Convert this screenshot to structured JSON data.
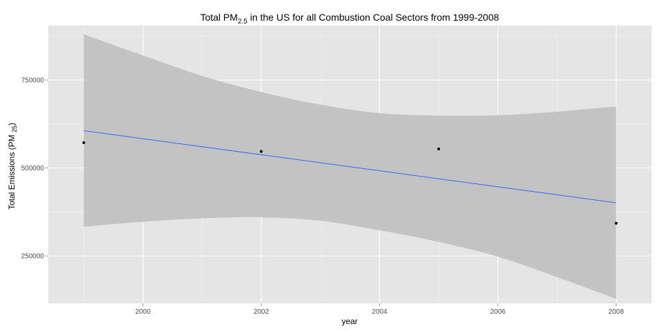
{
  "chart_data": {
    "type": "scatter",
    "title": {
      "prefix": "Total PM",
      "subscript": "2.5",
      "suffix": " in the US for all Combustion Coal Sectors from 1999-2008"
    },
    "xlabel": "year",
    "ylabel": {
      "prefix": "Total Emissions (PM ",
      "subscript": "25",
      "suffix": ")"
    },
    "xlim": [
      1998.4,
      2008.6
    ],
    "ylim": [
      115000,
      905000
    ],
    "x_ticks": [
      2000,
      2002,
      2004,
      2006,
      2008
    ],
    "x_tick_labels": [
      "2000",
      "2002",
      "2004",
      "2006",
      "2008"
    ],
    "y_ticks": [
      250000,
      500000,
      750000
    ],
    "y_tick_labels": [
      "250000",
      "500000",
      "750000"
    ],
    "grid": true,
    "points": [
      {
        "x": 1999,
        "y": 572000
      },
      {
        "x": 2002,
        "y": 547000
      },
      {
        "x": 2005,
        "y": 554000
      },
      {
        "x": 2008,
        "y": 343000
      }
    ],
    "fit_line": {
      "method": "linear",
      "start": {
        "x": 1999,
        "y": 606000
      },
      "end": {
        "x": 2008,
        "y": 401000
      }
    },
    "confidence_band": {
      "x": [
        1999,
        2000,
        2001,
        2002,
        2003,
        2004,
        2005,
        2006,
        2007,
        2008
      ],
      "upper": [
        880000,
        820000,
        762000,
        716000,
        680000,
        656000,
        649000,
        650000,
        660000,
        675000
      ],
      "lower": [
        333000,
        347000,
        357000,
        360000,
        350000,
        323000,
        290000,
        248000,
        190000,
        128000
      ]
    },
    "colors": {
      "panel": "#e5e5e5",
      "grid_major": "#ffffff",
      "grid_minor": "#f2f2f2",
      "band": "#c3c3c3",
      "line": "#3366ff",
      "point": "#000000"
    }
  }
}
